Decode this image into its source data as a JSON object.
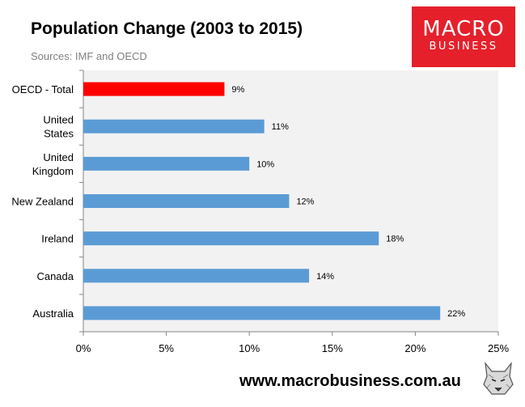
{
  "header": {
    "title": "Population Change (2003 to 2015)",
    "subtitle": "Sources: IMF and OECD"
  },
  "brand": {
    "logo_top": "MACRO",
    "logo_bottom": "BUSINESS",
    "website": "www.macrobusiness.com.au",
    "mascot_icon": "wolf-mascot-icon",
    "colors": {
      "logo_bg": "#e5202b"
    }
  },
  "chart_data": {
    "type": "bar",
    "orientation": "horizontal",
    "categories": [
      [
        "OECD - Total"
      ],
      [
        "United",
        "States"
      ],
      [
        "United",
        "Kingdom"
      ],
      [
        "New Zealand"
      ],
      [
        "Ireland"
      ],
      [
        "Canada"
      ],
      [
        "Australia"
      ]
    ],
    "values": [
      8.5,
      10.9,
      10.0,
      12.4,
      17.8,
      13.6,
      21.5
    ],
    "labels": [
      "9%",
      "11%",
      "10%",
      "12%",
      "18%",
      "14%",
      "22%"
    ],
    "colors": [
      "#ff0000",
      "#5b9bd5",
      "#5b9bd5",
      "#5b9bd5",
      "#5b9bd5",
      "#5b9bd5",
      "#5b9bd5"
    ],
    "xlim": [
      0,
      25
    ],
    "xticks": [
      "0%",
      "5%",
      "10%",
      "15%",
      "20%",
      "25%"
    ],
    "title": "Population Change (2003 to 2015)",
    "grid": false,
    "plot_background": "#f2f2f2"
  }
}
